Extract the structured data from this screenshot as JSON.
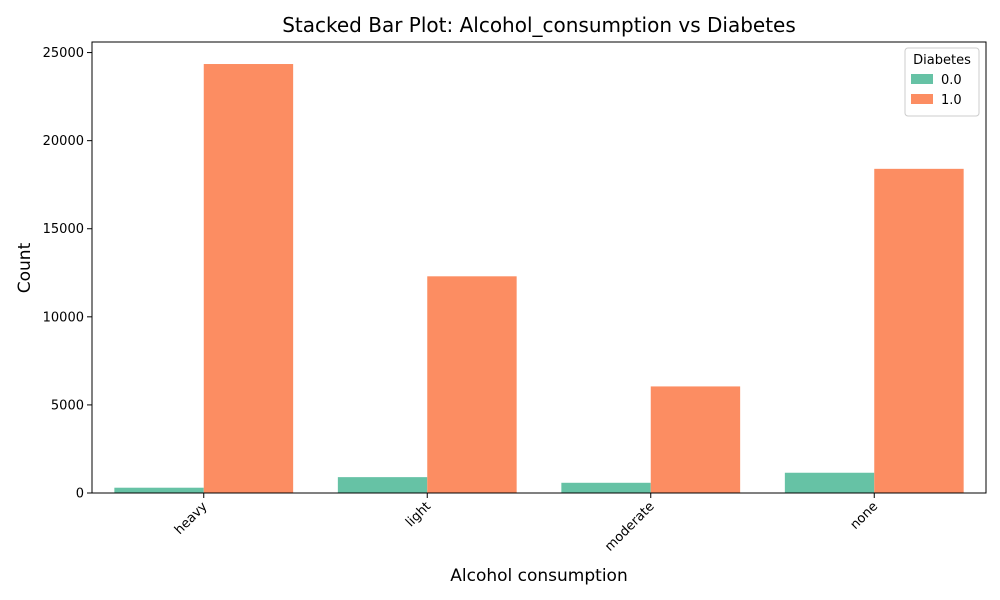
{
  "chart_data": {
    "type": "bar",
    "title": "Stacked Bar Plot: Alcohol_consumption vs Diabetes",
    "xlabel": "Alcohol consumption",
    "ylabel": "Count",
    "categories": [
      "heavy",
      "light",
      "moderate",
      "none"
    ],
    "series": [
      {
        "name": "0.0",
        "color": "#66c2a5",
        "values": [
          300,
          900,
          580,
          1150
        ]
      },
      {
        "name": "1.0",
        "color": "#fc8d62",
        "values": [
          24350,
          12300,
          6050,
          18400
        ]
      }
    ],
    "ylim": [
      0,
      25600
    ],
    "yticks": [
      0,
      5000,
      10000,
      15000,
      20000,
      25000
    ],
    "ytick_labels": [
      "0",
      "5000",
      "10000",
      "15000",
      "20000",
      "25000"
    ],
    "legend": {
      "title": "Diabetes",
      "position": "top-right"
    },
    "grid": false
  }
}
